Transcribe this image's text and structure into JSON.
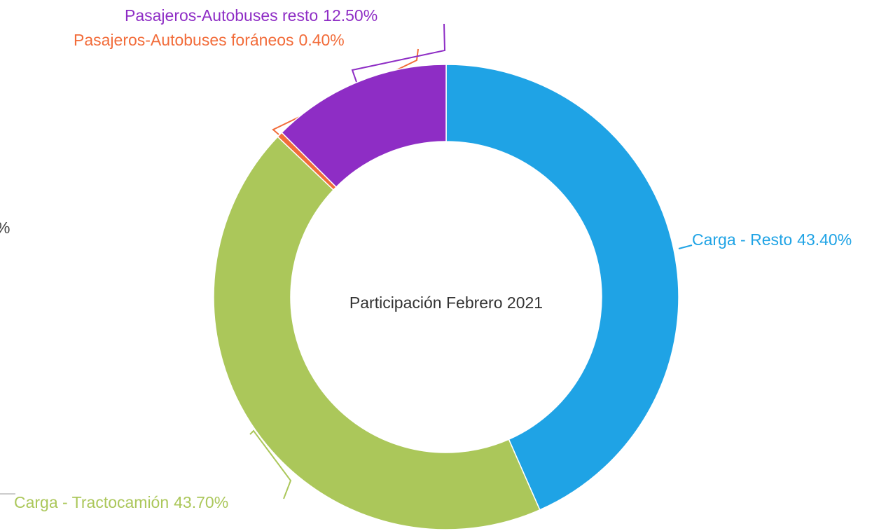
{
  "chart_data": {
    "type": "donut",
    "center_text": "Participación Febrero 2021",
    "categories": [
      "Carga - Resto",
      "Carga - Tractocamión",
      "Pasajeros-Autobuses foráneos",
      "Pasajeros-Autobuses resto"
    ],
    "values": [
      43.4,
      43.7,
      0.4,
      12.5
    ],
    "value_labels": [
      "43.40%",
      "43.70%",
      "0.40%",
      "12.50%"
    ],
    "colors": [
      "#1fa3e5",
      "#abc75a",
      "#f26c3a",
      "#8e2dc5"
    ],
    "partial_text": "%"
  }
}
